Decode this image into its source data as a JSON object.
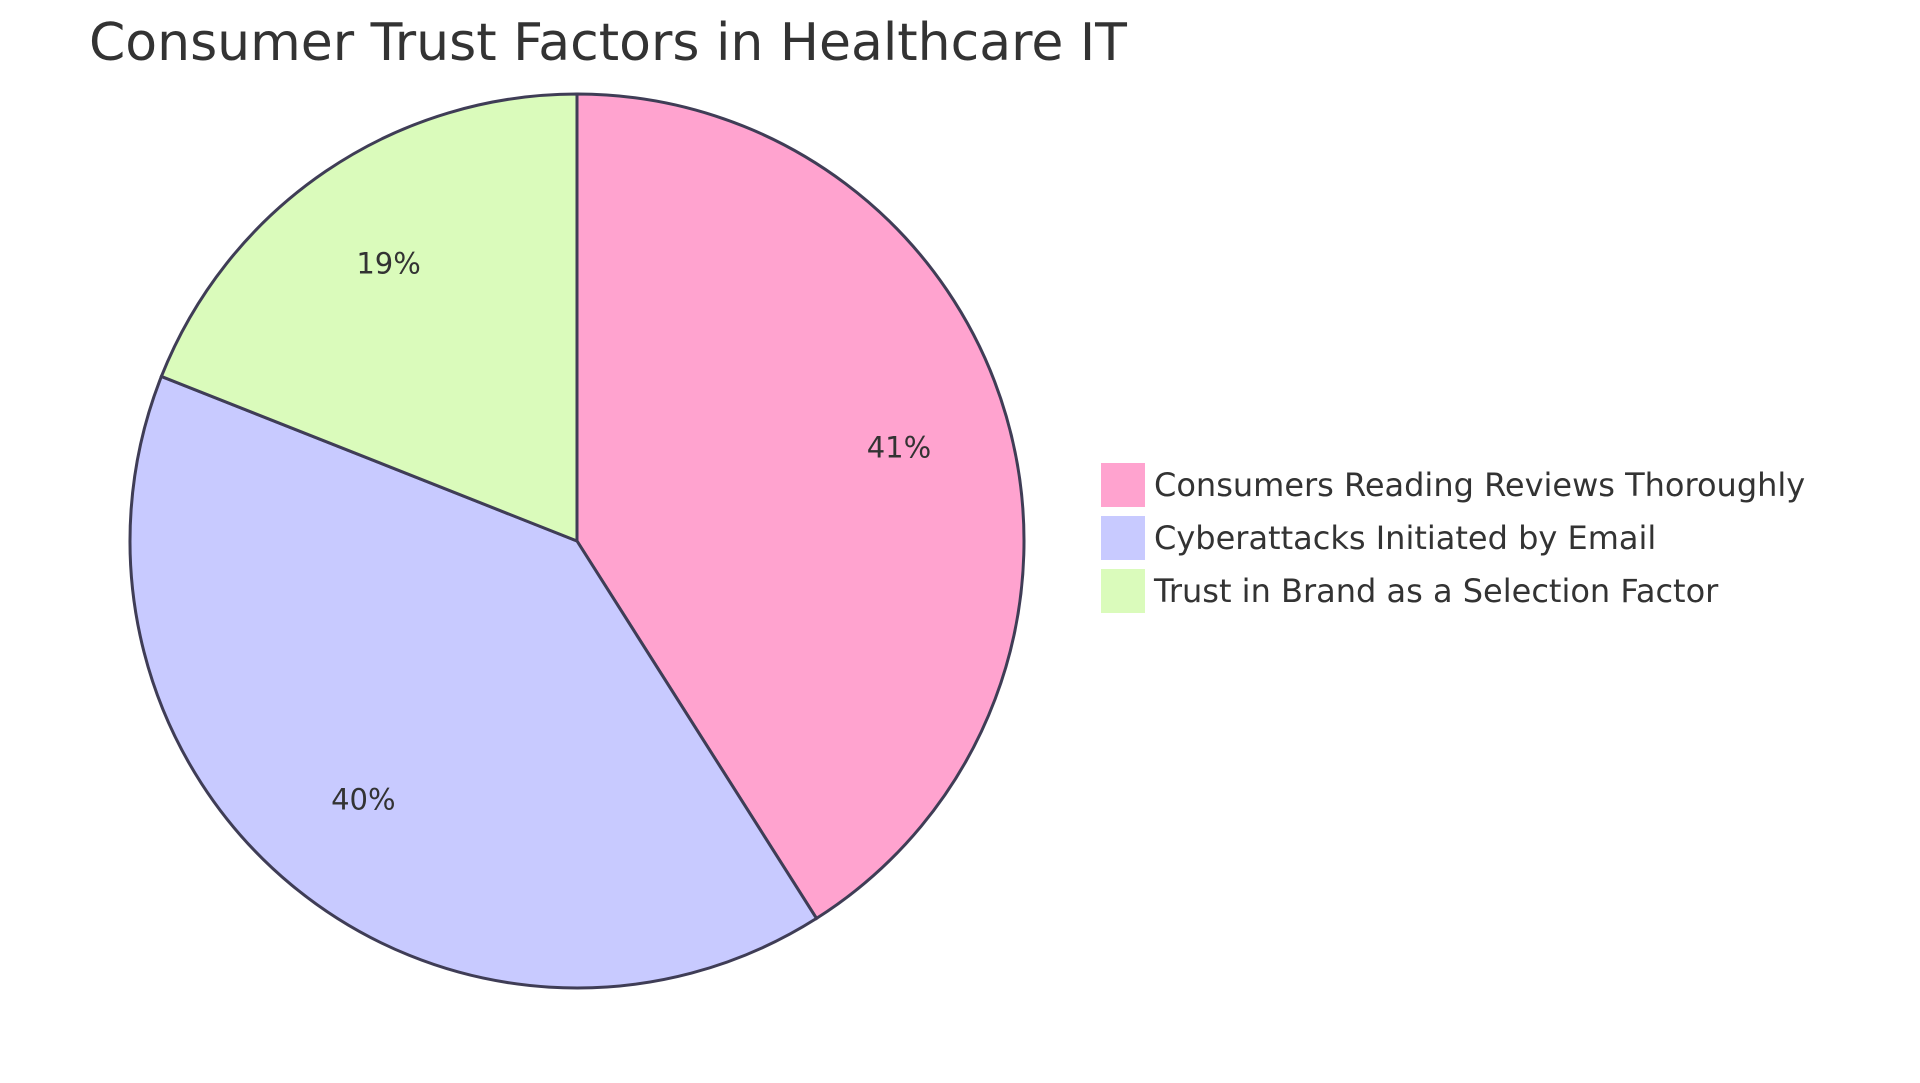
{
  "chart_data": {
    "type": "pie",
    "title": "Consumer Trust Factors in Healthcare IT",
    "slices": [
      {
        "label": "Consumers Reading Reviews Thoroughly",
        "value": 41,
        "display": "41%",
        "color": "#ffa3cf"
      },
      {
        "label": "Cyberattacks Initiated by Email",
        "value": 40,
        "display": "40%",
        "color": "#c8caff"
      },
      {
        "label": "Trust in Brand as a Selection Factor",
        "value": 19,
        "display": "19%",
        "color": "#dafbbb"
      }
    ],
    "legend_position": "right",
    "stroke_color": "#3f3d56"
  }
}
